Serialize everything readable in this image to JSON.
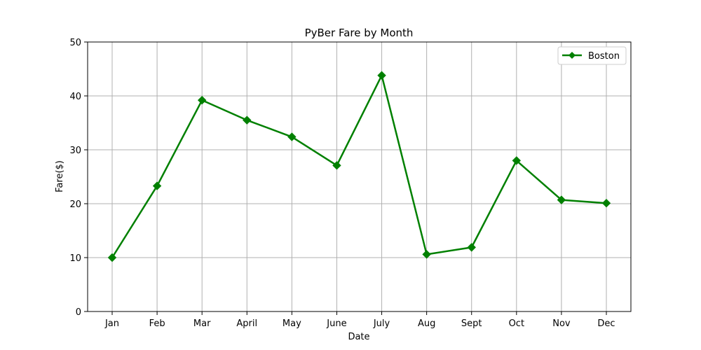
{
  "chart_data": {
    "type": "line",
    "title": "PyBer Fare by Month",
    "xlabel": "Date",
    "ylabel": "Fare($)",
    "categories": [
      "Jan",
      "Feb",
      "Mar",
      "April",
      "May",
      "June",
      "July",
      "Aug",
      "Sept",
      "Oct",
      "Nov",
      "Dec"
    ],
    "series": [
      {
        "name": "Boston",
        "color": "#008000",
        "marker": "diamond",
        "values": [
          10.0,
          23.3,
          39.2,
          35.5,
          32.4,
          27.1,
          43.8,
          10.6,
          11.9,
          28.0,
          20.7,
          20.1
        ]
      }
    ],
    "ylim": [
      0,
      50
    ],
    "yticks": [
      "0",
      "10",
      "20",
      "30",
      "40",
      "50"
    ],
    "grid": true,
    "legend_position": "top-right"
  }
}
